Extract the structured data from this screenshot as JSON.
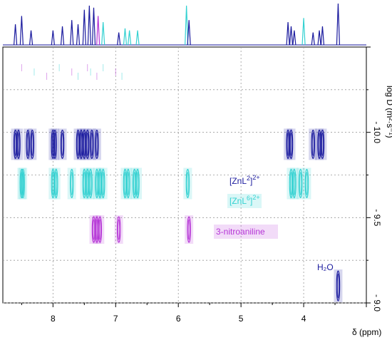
{
  "chart_data": {
    "type": "dosy-2d-nmr",
    "xlabel": "δ (ppm)",
    "ylabel": "log D (m²·s⁻¹)",
    "xlim": [
      8.8,
      3.0
    ],
    "ylim": [
      -9.0,
      -10.5
    ],
    "x_ticks": [
      8,
      7,
      6,
      5,
      4
    ],
    "y_ticks": [
      -10.0,
      -9.5,
      -9.0
    ],
    "x_tick_labels": [
      "8",
      "7",
      "6",
      "5",
      "4"
    ],
    "y_tick_labels": [
      "- 10.0",
      "- 9.5",
      "- 9.0"
    ],
    "grid": true,
    "series": [
      {
        "name": "[ZnL²]²⁺",
        "label_main": "[ZnL",
        "label_sup": "2",
        "label_close": "]",
        "label_charge": "2+",
        "color": "#1a1a9e",
        "logD": -9.93,
        "peaks_ppm": [
          8.6,
          8.55,
          8.4,
          8.33,
          8.0,
          7.97,
          7.85,
          7.6,
          7.55,
          7.5,
          7.45,
          7.38,
          7.3,
          4.25,
          4.2,
          3.85,
          3.75,
          3.7
        ]
      },
      {
        "name": "[ZnL⁶]²⁺",
        "label_main": "[ZnL",
        "label_sup": "6",
        "label_close": "]",
        "label_charge": "2+",
        "color": "#33d1d1",
        "logD": -9.7,
        "peaks_ppm": [
          8.5,
          8.48,
          8.0,
          7.95,
          7.7,
          7.5,
          7.45,
          7.4,
          7.3,
          7.25,
          7.2,
          6.85,
          6.8,
          6.7,
          6.65,
          5.85,
          4.2,
          4.15,
          4.05,
          3.95
        ]
      },
      {
        "name": "3-nitroaniline",
        "label_main": "3-nitroaniline",
        "color": "#b535d6",
        "logD": -9.43,
        "peaks_ppm": [
          7.35,
          7.3,
          7.25,
          6.95,
          5.83
        ]
      },
      {
        "name": "H₂O",
        "label_main": "H₂O",
        "color": "#1a1a9e",
        "logD": -9.1,
        "peaks_ppm": [
          3.45
        ]
      }
    ],
    "projection_peaks": [
      {
        "ppm": 8.6,
        "h": 0.5,
        "color": "#1a1a9e"
      },
      {
        "ppm": 8.5,
        "h": 0.7,
        "color": "#1a1a9e"
      },
      {
        "ppm": 8.35,
        "h": 0.35,
        "color": "#1a1a9e"
      },
      {
        "ppm": 8.0,
        "h": 0.35,
        "color": "#1a1a9e"
      },
      {
        "ppm": 7.85,
        "h": 0.45,
        "color": "#1a1a9e"
      },
      {
        "ppm": 7.7,
        "h": 0.6,
        "color": "#1a1a9e"
      },
      {
        "ppm": 7.6,
        "h": 0.5,
        "color": "#1a1a9e"
      },
      {
        "ppm": 7.5,
        "h": 0.85,
        "color": "#1a1a9e"
      },
      {
        "ppm": 7.42,
        "h": 0.95,
        "color": "#1a1a9e"
      },
      {
        "ppm": 7.35,
        "h": 0.9,
        "color": "#1a1a9e"
      },
      {
        "ppm": 7.28,
        "h": 0.7,
        "color": "#b535d6"
      },
      {
        "ppm": 7.2,
        "h": 0.55,
        "color": "#33d1d1"
      },
      {
        "ppm": 6.95,
        "h": 0.3,
        "color": "#1a1a9e"
      },
      {
        "ppm": 6.85,
        "h": 0.4,
        "color": "#33d1d1"
      },
      {
        "ppm": 6.78,
        "h": 0.35,
        "color": "#33d1d1"
      },
      {
        "ppm": 6.65,
        "h": 0.35,
        "color": "#33d1d1"
      },
      {
        "ppm": 5.87,
        "h": 0.95,
        "color": "#33d1d1"
      },
      {
        "ppm": 5.83,
        "h": 0.6,
        "color": "#1a1a9e"
      },
      {
        "ppm": 4.25,
        "h": 0.55,
        "color": "#1a1a9e"
      },
      {
        "ppm": 4.2,
        "h": 0.45,
        "color": "#1a1a9e"
      },
      {
        "ppm": 4.15,
        "h": 0.35,
        "color": "#1a1a9e"
      },
      {
        "ppm": 4.0,
        "h": 0.65,
        "color": "#33d1d1"
      },
      {
        "ppm": 3.85,
        "h": 0.3,
        "color": "#1a1a9e"
      },
      {
        "ppm": 3.75,
        "h": 0.35,
        "color": "#1a1a9e"
      },
      {
        "ppm": 3.7,
        "h": 0.45,
        "color": "#1a1a9e"
      },
      {
        "ppm": 3.45,
        "h": 1.0,
        "color": "#1a1a9e"
      }
    ],
    "top_noise_ppm": [
      8.5,
      8.3,
      8.1,
      7.9,
      7.7,
      7.6,
      7.45,
      7.4,
      7.3,
      7.2,
      7.0,
      6.9
    ]
  }
}
